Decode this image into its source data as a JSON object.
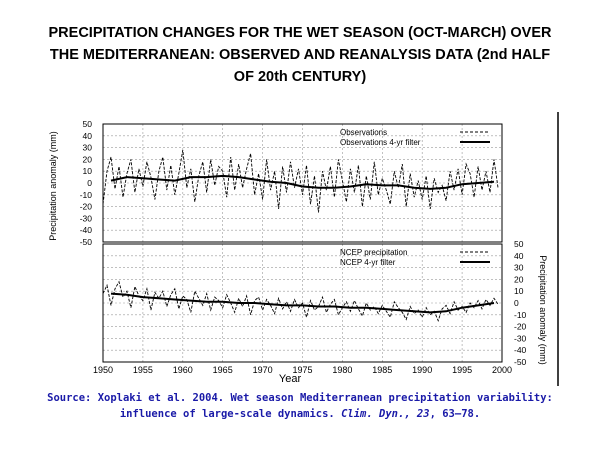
{
  "slide": {
    "title_lines": [
      "PRECIPITATION CHANGES FOR THE WET SEASON (OCT-MARCH) OVER",
      "THE MEDITERRANEAN: OBSERVED AND REANALYSIS DATA (2nd HALF",
      "OF 20th CENTURY)"
    ],
    "source": {
      "line1": "Source: Xoplaki et al. 2004. Wet season Mediterranean precipitation variability:",
      "line2_a": "influence of large-scale dynamics. ",
      "line2_journal": "Clim. Dyn., 23",
      "line2_b": ", 63–78."
    }
  },
  "colors": {
    "title": "#000000",
    "caption": "#1a1aa8",
    "grid": "#9a9a9a",
    "ink": "#000000"
  },
  "chart_data": [
    {
      "type": "line",
      "panel": "top",
      "ylabel": "Precipitation anomaly (mm)",
      "y_axis_side": "left",
      "xlabel": "",
      "ylim": [
        -50,
        50
      ],
      "yticks": [
        -50,
        -40,
        -30,
        -20,
        -10,
        0,
        10,
        20,
        30,
        40,
        50
      ],
      "xlim": [
        1950,
        2000
      ],
      "grid": true,
      "legend_position": "top-right",
      "series": [
        {
          "name": "Observations",
          "style": "dashed",
          "x": [
            1950,
            1950.5,
            1951,
            1951.5,
            1952,
            1952.5,
            1953,
            1953.5,
            1954,
            1954.5,
            1955,
            1955.5,
            1956,
            1956.5,
            1957,
            1957.5,
            1958,
            1958.5,
            1959,
            1959.5,
            1960,
            1960.5,
            1961,
            1961.5,
            1962,
            1962.5,
            1963,
            1963.5,
            1964,
            1964.5,
            1965,
            1965.5,
            1966,
            1966.5,
            1967,
            1967.5,
            1968,
            1968.5,
            1969,
            1969.5,
            1970,
            1970.5,
            1971,
            1971.5,
            1972,
            1972.5,
            1973,
            1973.5,
            1974,
            1974.5,
            1975,
            1975.5,
            1976,
            1976.5,
            1977,
            1977.5,
            1978,
            1978.5,
            1979,
            1979.5,
            1980,
            1980.5,
            1981,
            1981.5,
            1982,
            1982.5,
            1983,
            1983.5,
            1984,
            1984.5,
            1985,
            1985.5,
            1986,
            1986.5,
            1987,
            1987.5,
            1988,
            1988.5,
            1989,
            1989.5,
            1990,
            1990.5,
            1991,
            1991.5,
            1992,
            1992.5,
            1993,
            1993.5,
            1994,
            1994.5,
            1995,
            1995.5,
            1996,
            1996.5,
            1997,
            1997.5,
            1998,
            1998.5,
            1999,
            1999.5
          ],
          "y": [
            -18,
            10,
            22,
            -5,
            14,
            -12,
            8,
            20,
            -8,
            12,
            -3,
            18,
            5,
            -14,
            10,
            22,
            -6,
            15,
            -10,
            8,
            28,
            -4,
            12,
            -16,
            6,
            18,
            -8,
            20,
            -2,
            14,
            10,
            -12,
            22,
            -6,
            16,
            -4,
            12,
            25,
            -10,
            8,
            -14,
            20,
            -6,
            10,
            -22,
            14,
            -8,
            18,
            -4,
            12,
            -10,
            15,
            -18,
            6,
            -25,
            10,
            -6,
            14,
            -12,
            20,
            2,
            -16,
            12,
            -8,
            15,
            -20,
            6,
            -14,
            18,
            -10,
            4,
            -6,
            -18,
            10,
            -4,
            16,
            -20,
            8,
            -12,
            2,
            -14,
            6,
            -22,
            4,
            -8,
            -2,
            -15,
            10,
            -6,
            12,
            -10,
            16,
            8,
            -12,
            14,
            -6,
            10,
            -8,
            20,
            -4
          ]
        },
        {
          "name": "Observations 4-yr filter",
          "style": "solid",
          "x": [
            1951,
            1953,
            1955,
            1957,
            1959,
            1961,
            1963,
            1965,
            1967,
            1969,
            1971,
            1973,
            1975,
            1977,
            1979,
            1981,
            1983,
            1985,
            1987,
            1989,
            1991,
            1993,
            1995,
            1997,
            1999
          ],
          "y": [
            2,
            5,
            4,
            3,
            2,
            5,
            5,
            6,
            5,
            3,
            1,
            0,
            -3,
            -4,
            -4,
            -3,
            -1,
            -2,
            -2,
            -4,
            -5,
            -4,
            -1,
            0,
            1
          ]
        }
      ]
    },
    {
      "type": "line",
      "panel": "bottom",
      "ylabel": "Precipitation anomaly (mm)",
      "y_axis_side": "right",
      "xlabel": "Year",
      "ylim": [
        -50,
        50
      ],
      "yticks": [
        -50,
        -40,
        -30,
        -20,
        -10,
        0,
        10,
        20,
        30,
        40,
        50
      ],
      "xlim": [
        1950,
        2000
      ],
      "xticks": [
        1950,
        1955,
        1960,
        1965,
        1970,
        1975,
        1980,
        1985,
        1990,
        1995,
        2000
      ],
      "grid": true,
      "legend_position": "top-right",
      "series": [
        {
          "name": "NCEP precipitation",
          "style": "dashed",
          "x": [
            1950,
            1950.5,
            1951,
            1951.5,
            1952,
            1952.5,
            1953,
            1953.5,
            1954,
            1954.5,
            1955,
            1955.5,
            1956,
            1956.5,
            1957,
            1957.5,
            1958,
            1958.5,
            1959,
            1959.5,
            1960,
            1960.5,
            1961,
            1961.5,
            1962,
            1962.5,
            1963,
            1963.5,
            1964,
            1964.5,
            1965,
            1965.5,
            1966,
            1966.5,
            1967,
            1967.5,
            1968,
            1968.5,
            1969,
            1969.5,
            1970,
            1970.5,
            1971,
            1971.5,
            1972,
            1972.5,
            1973,
            1973.5,
            1974,
            1974.5,
            1975,
            1975.5,
            1976,
            1976.5,
            1977,
            1977.5,
            1978,
            1978.5,
            1979,
            1979.5,
            1980,
            1980.5,
            1981,
            1981.5,
            1982,
            1982.5,
            1983,
            1983.5,
            1984,
            1984.5,
            1985,
            1985.5,
            1986,
            1986.5,
            1987,
            1987.5,
            1988,
            1988.5,
            1989,
            1989.5,
            1990,
            1990.5,
            1991,
            1991.5,
            1992,
            1992.5,
            1993,
            1993.5,
            1994,
            1994.5,
            1995,
            1995.5,
            1996,
            1996.5,
            1997,
            1997.5,
            1998,
            1998.5,
            1999,
            1999.5
          ],
          "y": [
            8,
            15,
            -2,
            12,
            18,
            5,
            10,
            -4,
            14,
            6,
            2,
            12,
            -6,
            9,
            4,
            10,
            -3,
            7,
            12,
            -5,
            6,
            3,
            -8,
            10,
            4,
            -2,
            8,
            -6,
            5,
            2,
            -4,
            7,
            0,
            -8,
            4,
            -3,
            6,
            -10,
            2,
            5,
            -6,
            3,
            -2,
            -9,
            4,
            -5,
            1,
            -7,
            3,
            -4,
            0,
            -12,
            2,
            -6,
            -3,
            5,
            -8,
            -1,
            3,
            -10,
            -4,
            1,
            -7,
            2,
            -5,
            -11,
            0,
            -6,
            -3,
            -9,
            -2,
            -7,
            -12,
            1,
            -4,
            -8,
            -14,
            -3,
            -9,
            -6,
            -12,
            -4,
            -10,
            -7,
            -15,
            -5,
            -2,
            -9,
            1,
            -6,
            -3,
            -8,
            0,
            -4,
            2,
            -5,
            3,
            -2,
            4,
            -1
          ]
        },
        {
          "name": "NCEP 4-yr filter",
          "style": "solid",
          "x": [
            1951,
            1953,
            1955,
            1957,
            1959,
            1961,
            1963,
            1965,
            1967,
            1969,
            1971,
            1973,
            1975,
            1977,
            1979,
            1981,
            1983,
            1985,
            1987,
            1989,
            1991,
            1993,
            1995,
            1997,
            1999
          ],
          "y": [
            8,
            7,
            5,
            4,
            3,
            2,
            1,
            1,
            0,
            0,
            -1,
            -2,
            -2,
            -3,
            -3,
            -4,
            -4,
            -5,
            -6,
            -7,
            -8,
            -7,
            -4,
            -2,
            0
          ]
        }
      ]
    }
  ]
}
